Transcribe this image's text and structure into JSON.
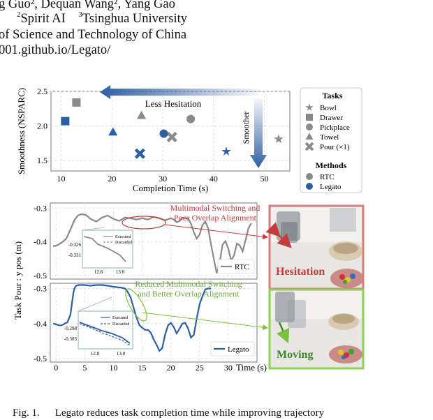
{
  "header": {
    "line1": "g Guo², Dequan Wang², Yang Gao",
    "line2_sup": "2",
    "line2_a": "Spirit AI",
    "line2_sup2": "3",
    "line2_b": "Tsinghua University",
    "line3": "of Science and Technology of China",
    "line4": "001.github.io/Legato/"
  },
  "caption": {
    "label": "Fig. 1.",
    "text": "Legato reduces task completion time while improving trajectory"
  },
  "colors": {
    "rtc": "#8a8a8a",
    "legato": "#2f5fa3",
    "red": "#c43c3c",
    "green": "#7cbf3f"
  },
  "scatter": {
    "chart_data": {
      "type": "scatter",
      "xlabel": "Completion Time (s)",
      "ylabel": "Smoothness (NSPARC)",
      "xlim": [
        8,
        55
      ],
      "ylim": [
        1.35,
        2.5
      ],
      "xticks": [
        10,
        20,
        30,
        40,
        50
      ],
      "yticks": [
        1.5,
        2.0,
        2.5
      ],
      "grid": true,
      "series": [
        {
          "name": "RTC",
          "points": [
            {
              "task": "Bowl",
              "marker": "star",
              "x": 52.8,
              "y": 1.81
            },
            {
              "task": "Drawer",
              "marker": "square",
              "x": 13.0,
              "y": 2.34
            },
            {
              "task": "Pickplace",
              "marker": "circle",
              "x": 35.5,
              "y": 2.1
            },
            {
              "task": "Towel",
              "marker": "triangle",
              "x": 25.8,
              "y": 2.15
            },
            {
              "task": "Pour (×1)",
              "marker": "cross",
              "x": 31.8,
              "y": 1.84
            }
          ]
        },
        {
          "name": "Legato",
          "points": [
            {
              "task": "Bowl",
              "marker": "star",
              "x": 42.5,
              "y": 1.63
            },
            {
              "task": "Drawer",
              "marker": "square",
              "x": 10.8,
              "y": 2.07
            },
            {
              "task": "Pickplace",
              "marker": "circle",
              "x": 30.2,
              "y": 1.89
            },
            {
              "task": "Towel",
              "marker": "triangle",
              "x": 20.2,
              "y": 1.91
            },
            {
              "task": "Pour (×1)",
              "marker": "cross",
              "x": 25.5,
              "y": 1.6
            }
          ]
        }
      ],
      "annotations": [
        "Less Hesitation",
        "Smoother"
      ],
      "legend": {
        "tasks_title": "Tasks",
        "tasks": [
          {
            "label": "Bowl",
            "marker": "star"
          },
          {
            "label": "Drawer",
            "marker": "square"
          },
          {
            "label": "Pickplace",
            "marker": "circle"
          },
          {
            "label": "Towel",
            "marker": "triangle"
          },
          {
            "label": "Pour (×1)",
            "marker": "cross"
          }
        ],
        "methods_title": "Methods",
        "methods": [
          {
            "label": "RTC"
          },
          {
            "label": "Legato"
          }
        ]
      }
    }
  },
  "lines": {
    "chart_data": {
      "type": "line",
      "ylabel": "Task Pour : y pos (m)",
      "xlabel": "Time (s)",
      "xlim": [
        -1,
        35
      ],
      "xticks": [
        0,
        5,
        10,
        15,
        20,
        25,
        30
      ],
      "ylim": [
        -0.51,
        -0.285
      ],
      "yticks": [
        -0.3,
        -0.4,
        -0.5
      ],
      "top": {
        "legend": "RTC",
        "x": [
          -0.5,
          0.2,
          1,
          1.8,
          2.6,
          3.2,
          3.8,
          4.4,
          5.2,
          6,
          7,
          8,
          9,
          10,
          11,
          12,
          13,
          14,
          15,
          16,
          17,
          18,
          19,
          20,
          20.5,
          21,
          21.5,
          22,
          22.5,
          23,
          23.5,
          24,
          24.5,
          25,
          25.5,
          26,
          26.5,
          27,
          27.5,
          28,
          28.5,
          29,
          29.5,
          30,
          30.5,
          31,
          31.5,
          32,
          32.5,
          33,
          33.5,
          34
        ],
        "y": [
          -0.413,
          -0.41,
          -0.402,
          -0.39,
          -0.36,
          -0.336,
          -0.322,
          -0.318,
          -0.32,
          -0.332,
          -0.34,
          -0.328,
          -0.322,
          -0.332,
          -0.338,
          -0.328,
          -0.33,
          -0.334,
          -0.33,
          -0.334,
          -0.326,
          -0.33,
          -0.336,
          -0.33,
          -0.334,
          -0.342,
          -0.338,
          -0.328,
          -0.33,
          -0.33,
          -0.346,
          -0.372,
          -0.39,
          -0.378,
          -0.35,
          -0.34,
          -0.36,
          -0.408,
          -0.452,
          -0.493,
          -0.46,
          -0.408,
          -0.398,
          -0.42,
          -0.455,
          -0.44,
          -0.405,
          -0.41,
          -0.428,
          -0.395,
          -0.36,
          -0.345
        ],
        "annotation": "Multimodal Switching and Poor Overlap Alignment",
        "inset": {
          "xticks": [
            "12.8",
            "13.0"
          ],
          "yticks": [
            "-0.326",
            "-0.331"
          ],
          "legend": [
            "Executed",
            "Discarded"
          ]
        }
      },
      "bottom": {
        "legend": "Legato",
        "x": [
          -0.5,
          0,
          0.5,
          1,
          1.5,
          2,
          2.5,
          3,
          3.2,
          3.5,
          4,
          5,
          6,
          7,
          8,
          9,
          10,
          11,
          11.5,
          12,
          12.5,
          13,
          13.5,
          14,
          14.5,
          15,
          15.5,
          16,
          16.5,
          17,
          17.5,
          18,
          18.5,
          19,
          19.5,
          20,
          20.5,
          21,
          21.5,
          22,
          22.5,
          23,
          23.5,
          24,
          24.5,
          25,
          25.5,
          26,
          26.5,
          27
        ],
        "y": [
          -0.4,
          -0.402,
          -0.405,
          -0.405,
          -0.4,
          -0.396,
          -0.375,
          -0.315,
          -0.3,
          -0.292,
          -0.29,
          -0.29,
          -0.292,
          -0.29,
          -0.29,
          -0.292,
          -0.295,
          -0.297,
          -0.298,
          -0.3,
          -0.31,
          -0.326,
          -0.354,
          -0.382,
          -0.404,
          -0.412,
          -0.418,
          -0.418,
          -0.426,
          -0.445,
          -0.46,
          -0.478,
          -0.47,
          -0.432,
          -0.405,
          -0.398,
          -0.41,
          -0.428,
          -0.415,
          -0.4,
          -0.398,
          -0.414,
          -0.44,
          -0.432,
          -0.385,
          -0.345,
          -0.322,
          -0.302,
          -0.3,
          -0.3
        ],
        "annotation": "Reduced Multimodal Switching and Better Overlap Alignment",
        "inset": {
          "xticks": [
            "12.8",
            "13.0"
          ],
          "yticks": [
            "-0.298",
            "-0.303"
          ],
          "legend": [
            "Executed",
            "Discarded"
          ]
        }
      }
    }
  },
  "photos": {
    "top_label": "Hesitation",
    "bottom_label": "Moving"
  }
}
